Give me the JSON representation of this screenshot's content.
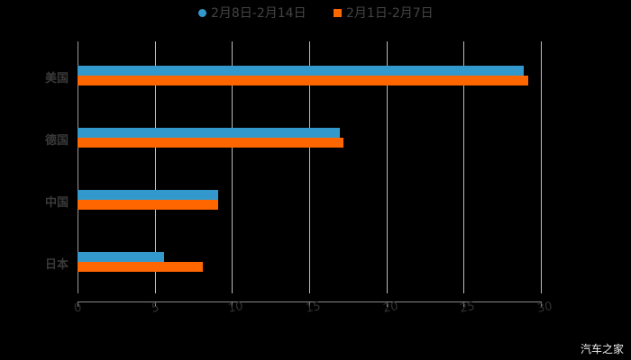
{
  "legend": [
    {
      "label": "2月8日-2月14日",
      "color": "#3399cc",
      "marker": "circle"
    },
    {
      "label": "2月1日-2月7日",
      "color": "#ff6600",
      "marker": "square"
    }
  ],
  "watermark": "汽车之家",
  "chart_data": {
    "type": "bar",
    "orientation": "horizontal",
    "title": "",
    "categories": [
      "美国",
      "德国",
      "中国",
      "日本"
    ],
    "series": [
      {
        "name": "2月8日-2月14日",
        "color": "#3399cc",
        "values": [
          28.9,
          17.0,
          9.1,
          5.6
        ]
      },
      {
        "name": "2月1日-2月7日",
        "color": "#ff6600",
        "values": [
          29.2,
          17.2,
          9.1,
          8.1
        ]
      }
    ],
    "xlabel": "",
    "ylabel": "",
    "xlim": [
      0,
      30
    ],
    "x_ticks": [
      "0",
      "5",
      "10",
      "15",
      "20",
      "25",
      "30"
    ],
    "grid": true,
    "legend_position": "top"
  }
}
